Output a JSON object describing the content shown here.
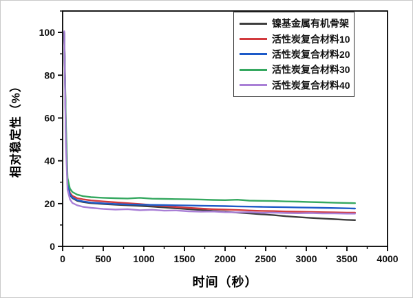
{
  "chart_data": {
    "type": "line",
    "title": "",
    "xlabel": "时间（秒）",
    "ylabel": "相对稳定性（%）",
    "xlim": [
      0,
      4000
    ],
    "ylim": [
      0,
      110
    ],
    "x_major_ticks": [
      0,
      500,
      1000,
      1500,
      2000,
      2500,
      3000,
      3500,
      4000
    ],
    "x_minor_step": 250,
    "y_major_ticks": [
      0,
      20,
      40,
      60,
      80,
      100
    ],
    "y_minor_step": 10,
    "grid": false,
    "legend_position": "top-center-inside",
    "axis_color": "#000000",
    "x": [
      20,
      40,
      60,
      90,
      120,
      180,
      250,
      350,
      500,
      650,
      800,
      950,
      1100,
      1250,
      1400,
      1550,
      1700,
      1850,
      2000,
      2150,
      2300,
      2450,
      2600,
      2750,
      2900,
      3050,
      3200,
      3350,
      3500,
      3600
    ],
    "series": [
      {
        "name": "镍基金属有机骨架",
        "color": "#3d3d3d",
        "values": [
          100,
          52,
          29,
          24,
          22.5,
          21.3,
          20.7,
          20.2,
          19.8,
          19.5,
          19.2,
          18.9,
          18.6,
          18.2,
          17.8,
          17.4,
          17.0,
          16.6,
          16.2,
          15.8,
          15.4,
          15.0,
          14.6,
          14.1,
          13.7,
          13.3,
          13.0,
          12.7,
          12.4,
          12.3
        ]
      },
      {
        "name": "活性炭复合材料10",
        "color": "#d23a3e",
        "values": [
          100,
          55,
          30,
          25,
          23.6,
          22.5,
          22.0,
          21.5,
          21.0,
          20.6,
          20.2,
          19.8,
          19.3,
          18.8,
          18.4,
          18.0,
          17.7,
          17.4,
          17.2,
          17.0,
          16.8,
          16.6,
          16.5,
          16.3,
          16.2,
          16.1,
          16.0,
          15.9,
          15.8,
          15.8
        ]
      },
      {
        "name": "活性炭复合材料20",
        "color": "#1d5ac8",
        "values": [
          100,
          53,
          29,
          24.3,
          22.8,
          21.6,
          21.0,
          20.5,
          20.1,
          19.8,
          19.6,
          19.5,
          19.4,
          19.3,
          19.2,
          19.1,
          19.0,
          18.9,
          18.8,
          18.7,
          18.6,
          18.5,
          18.4,
          18.3,
          18.2,
          18.1,
          18.0,
          17.9,
          17.8,
          17.7
        ]
      },
      {
        "name": "活性炭复合材料30",
        "color": "#35a860",
        "values": [
          100,
          58,
          32,
          27,
          25.4,
          24.2,
          23.5,
          23.0,
          22.7,
          22.5,
          22.4,
          22.7,
          22.3,
          22.2,
          22.1,
          22.0,
          21.9,
          21.7,
          21.6,
          21.8,
          21.4,
          21.3,
          21.2,
          21.0,
          20.9,
          20.7,
          20.6,
          20.4,
          20.3,
          20.2
        ]
      },
      {
        "name": "活性炭复合材料40",
        "color": "#a97fd6",
        "values": [
          100.5,
          48,
          26.5,
          22,
          20.3,
          19.2,
          18.5,
          18.0,
          17.5,
          17.2,
          17.4,
          16.9,
          17.1,
          16.7,
          16.8,
          16.4,
          16.2,
          16.3,
          16.0,
          15.9,
          16.0,
          15.7,
          15.8,
          15.6,
          15.5,
          15.6,
          15.4,
          15.4,
          15.3,
          15.3
        ]
      }
    ]
  }
}
